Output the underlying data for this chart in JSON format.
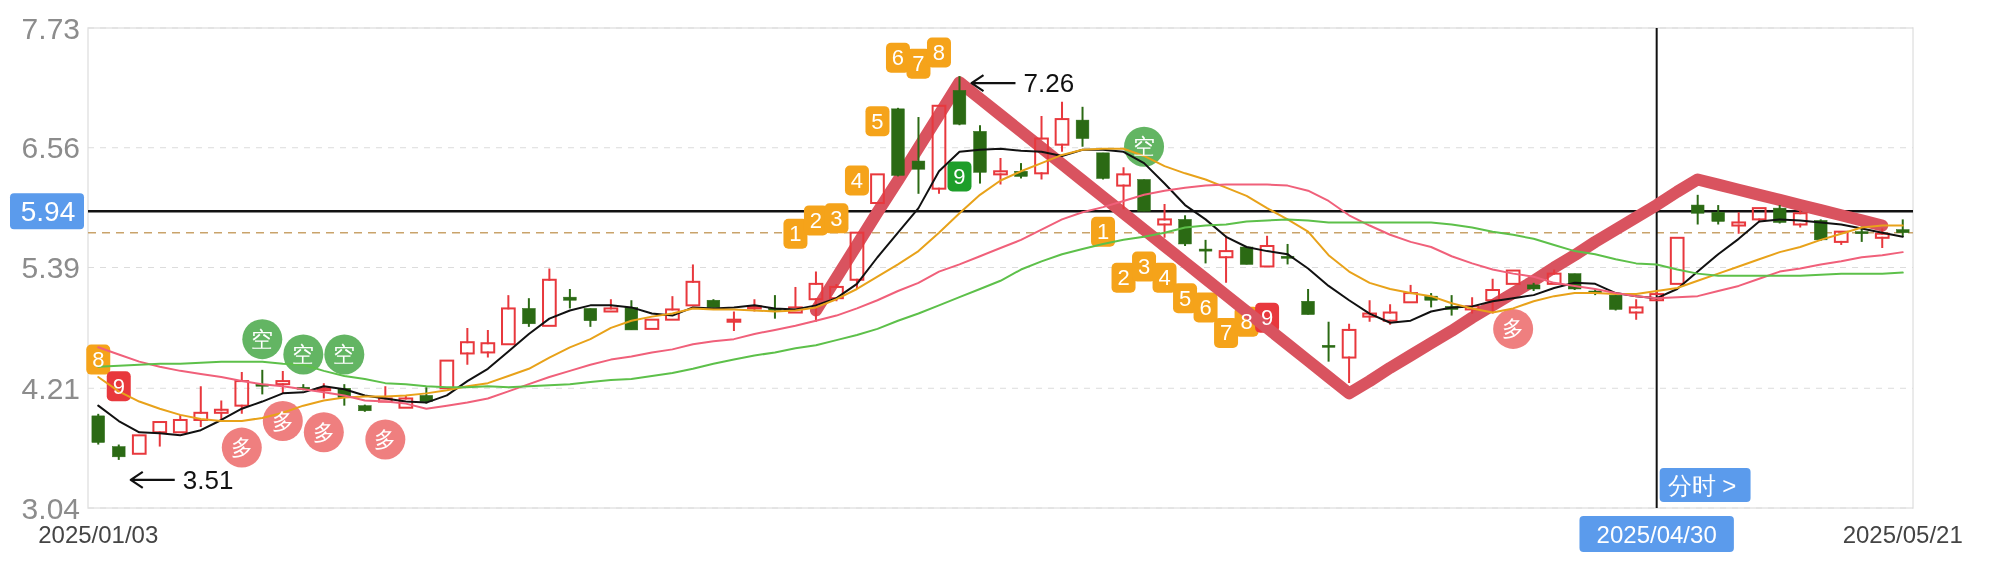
{
  "chart_data": {
    "type": "candlestick",
    "categories": [
      "2025/01/03",
      null,
      null,
      null,
      null,
      null,
      null,
      null,
      null,
      null,
      null,
      null,
      null,
      null,
      null,
      null,
      null,
      null,
      null,
      null,
      null,
      null,
      null,
      null,
      null,
      null,
      null,
      null,
      null,
      null,
      null,
      null,
      null,
      null,
      null,
      null,
      null,
      null,
      null,
      null,
      null,
      null,
      null,
      null,
      null,
      null,
      null,
      null,
      null,
      null,
      null,
      null,
      null,
      null,
      null,
      null,
      null,
      null,
      null,
      null,
      null,
      null,
      null,
      null,
      null,
      null,
      null,
      null,
      null,
      null,
      null,
      null,
      null,
      null,
      null,
      null,
      "2025/04/30",
      null,
      null,
      null,
      null,
      null,
      null,
      null,
      null,
      null,
      null,
      null,
      "2025/05/21"
    ],
    "ylim": [
      3.04,
      7.73
    ],
    "yticks": [
      3.04,
      4.21,
      5.39,
      6.56,
      7.73
    ],
    "grid": "y",
    "ohlc": [
      [
        3.94,
        3.96,
        3.66,
        3.68
      ],
      [
        3.64,
        3.66,
        3.51,
        3.54
      ],
      [
        3.57,
        3.75,
        3.57,
        3.75
      ],
      [
        3.78,
        3.88,
        3.65,
        3.88
      ],
      [
        3.78,
        3.94,
        3.78,
        3.9
      ],
      [
        3.9,
        4.22,
        3.84,
        3.97
      ],
      [
        3.97,
        4.08,
        3.9,
        4.0
      ],
      [
        4.04,
        4.36,
        3.97,
        4.28
      ],
      [
        4.25,
        4.39,
        4.15,
        4.23
      ],
      [
        4.25,
        4.37,
        4.17,
        4.28
      ],
      [
        4.22,
        4.25,
        4.19,
        4.21
      ],
      [
        4.19,
        4.25,
        4.12,
        4.21
      ],
      [
        4.21,
        4.25,
        4.04,
        4.12
      ],
      [
        4.04,
        4.05,
        3.98,
        3.99
      ],
      [
        4.08,
        4.22,
        4.08,
        4.11
      ],
      [
        4.02,
        4.13,
        4.01,
        4.11
      ],
      [
        4.14,
        4.22,
        4.06,
        4.08
      ],
      [
        4.21,
        4.48,
        4.21,
        4.48
      ],
      [
        4.55,
        4.79,
        4.45,
        4.66
      ],
      [
        4.56,
        4.77,
        4.52,
        4.65
      ],
      [
        4.64,
        5.11,
        4.64,
        4.99
      ],
      [
        4.99,
        5.09,
        4.81,
        4.84
      ],
      [
        4.82,
        5.37,
        4.81,
        5.27
      ],
      [
        5.1,
        5.18,
        4.99,
        5.07
      ],
      [
        4.99,
        4.99,
        4.81,
        4.87
      ],
      [
        4.96,
        5.07,
        4.95,
        4.99
      ],
      [
        5.0,
        5.07,
        4.78,
        4.78
      ],
      [
        4.79,
        4.88,
        4.78,
        4.88
      ],
      [
        4.88,
        5.1,
        4.87,
        4.98
      ],
      [
        5.02,
        5.41,
        5.02,
        5.25
      ],
      [
        5.07,
        5.08,
        5.0,
        5.0
      ],
      [
        4.86,
        4.95,
        4.78,
        4.88
      ],
      [
        4.99,
        5.07,
        4.97,
        5.01
      ],
      [
        4.99,
        5.12,
        4.89,
        4.98
      ],
      [
        4.95,
        5.19,
        4.94,
        5.0
      ],
      [
        5.08,
        5.34,
        4.87,
        5.23
      ],
      [
        5.09,
        5.22,
        5.07,
        5.2
      ],
      [
        5.27,
        5.74,
        5.19,
        5.73
      ],
      [
        6.02,
        6.31,
        6.02,
        6.3
      ],
      [
        6.94,
        6.95,
        6.28,
        6.29
      ],
      [
        6.43,
        6.86,
        6.11,
        6.35
      ],
      [
        6.16,
        6.98,
        6.12,
        6.97
      ],
      [
        7.12,
        7.26,
        6.78,
        6.79
      ],
      [
        6.72,
        6.78,
        6.21,
        6.32
      ],
      [
        6.3,
        6.45,
        6.21,
        6.33
      ],
      [
        6.33,
        6.41,
        6.26,
        6.28
      ],
      [
        6.31,
        6.86,
        6.26,
        6.65
      ],
      [
        6.59,
        7.0,
        6.53,
        6.84
      ],
      [
        6.83,
        6.96,
        6.57,
        6.65
      ],
      [
        6.51,
        6.51,
        6.25,
        6.26
      ],
      [
        6.19,
        6.36,
        5.97,
        6.3
      ],
      [
        6.25,
        6.25,
        5.94,
        5.94
      ],
      [
        5.81,
        6.0,
        5.69,
        5.86
      ],
      [
        5.86,
        5.9,
        5.6,
        5.62
      ],
      [
        5.57,
        5.66,
        5.43,
        5.55
      ],
      [
        5.49,
        5.69,
        5.25,
        5.55
      ],
      [
        5.59,
        5.59,
        5.42,
        5.42
      ],
      [
        5.4,
        5.69,
        5.4,
        5.6
      ],
      [
        5.5,
        5.62,
        5.42,
        5.48
      ],
      [
        5.06,
        5.18,
        4.93,
        4.93
      ],
      [
        4.63,
        4.86,
        4.47,
        4.61
      ],
      [
        4.51,
        4.83,
        4.27,
        4.78
      ],
      [
        4.91,
        5.06,
        4.87,
        4.94
      ],
      [
        4.87,
        5.02,
        4.84,
        4.95
      ],
      [
        5.05,
        5.21,
        5.05,
        5.14
      ],
      [
        5.11,
        5.14,
        5.0,
        5.07
      ],
      [
        5.01,
        5.12,
        4.92,
        4.98
      ],
      [
        4.98,
        5.09,
        4.95,
        5.01
      ],
      [
        5.07,
        5.27,
        4.95,
        5.17
      ],
      [
        5.23,
        5.37,
        5.22,
        5.36
      ],
      [
        5.22,
        5.24,
        5.16,
        5.18
      ],
      [
        5.23,
        5.36,
        5.22,
        5.33
      ],
      [
        5.33,
        5.33,
        5.17,
        5.18
      ],
      [
        5.16,
        5.18,
        5.12,
        5.14
      ],
      [
        5.12,
        5.12,
        4.97,
        4.98
      ],
      [
        4.95,
        5.07,
        4.89,
        5.0
      ],
      [
        5.07,
        5.16,
        5.06,
        5.13
      ],
      [
        5.23,
        5.69,
        5.22,
        5.68
      ],
      [
        6.0,
        6.1,
        5.81,
        5.92
      ],
      [
        5.93,
        6.0,
        5.81,
        5.84
      ],
      [
        5.8,
        5.92,
        5.73,
        5.83
      ],
      [
        5.86,
        5.98,
        5.84,
        5.97
      ],
      [
        5.97,
        6.0,
        5.82,
        5.83
      ],
      [
        5.81,
        5.94,
        5.79,
        5.92
      ],
      [
        5.85,
        5.86,
        5.65,
        5.66
      ],
      [
        5.64,
        5.75,
        5.62,
        5.74
      ],
      [
        5.74,
        5.79,
        5.64,
        5.72
      ],
      [
        5.68,
        5.76,
        5.59,
        5.72
      ],
      [
        5.76,
        5.86,
        5.69,
        5.73
      ]
    ],
    "colors": [
      "#2b6a14",
      "#2b6a14",
      "#e8383d",
      "#e8383d",
      "#e8383d",
      "#e8383d",
      "#e8383d",
      "#e8383d",
      "#2b6a14",
      "#e8383d",
      "#2b6a14",
      "#e8383d",
      "#2b6a14",
      "#2b6a14",
      "#e8383d",
      "#e8383d",
      "#2b6a14",
      "#e8383d",
      "#e8383d",
      "#e8383d",
      "#e8383d",
      "#2b6a14",
      "#e8383d",
      "#2b6a14",
      "#2b6a14",
      "#e8383d",
      "#2b6a14",
      "#e8383d",
      "#e8383d",
      "#e8383d",
      "#2b6a14",
      "#e8383d",
      "#e8383d",
      "#2b6a14",
      "#e8383d",
      "#e8383d",
      "#e8383d",
      "#e8383d",
      "#e8383d",
      "#2b6a14",
      "#2b6a14",
      "#e8383d",
      "#2b6a14",
      "#2b6a14",
      "#e8383d",
      "#2b6a14",
      "#e8383d",
      "#e8383d",
      "#2b6a14",
      "#2b6a14",
      "#e8383d",
      "#2b6a14",
      "#e8383d",
      "#2b6a14",
      "#2b6a14",
      "#e8383d",
      "#2b6a14",
      "#e8383d",
      "#2b6a14",
      "#2b6a14",
      "#2b6a14",
      "#e8383d",
      "#e8383d",
      "#e8383d",
      "#e8383d",
      "#2b6a14",
      "#2b6a14",
      "#e8383d",
      "#e8383d",
      "#e8383d",
      "#2b6a14",
      "#e8383d",
      "#2b6a14",
      "#2b6a14",
      "#2b6a14",
      "#e8383d",
      "#e8383d",
      "#e8383d",
      "#2b6a14",
      "#2b6a14",
      "#e8383d",
      "#e8383d",
      "#2b6a14",
      "#e8383d",
      "#2b6a14",
      "#e8383d",
      "#2b6a14",
      "#e8383d",
      "#2b6a14"
    ],
    "series": [
      {
        "type": "line",
        "color": "#111111",
        "values": [
          4.04,
          3.89,
          3.78,
          3.77,
          3.75,
          3.8,
          3.9,
          4.01,
          4.08,
          4.16,
          4.17,
          4.23,
          4.2,
          4.14,
          4.11,
          4.08,
          4.07,
          4.14,
          4.28,
          4.4,
          4.57,
          4.74,
          4.89,
          4.97,
          5.02,
          5.02,
          5.0,
          4.94,
          4.92,
          5.0,
          4.99,
          5.0,
          5.02,
          4.99,
          4.98,
          5.02,
          5.09,
          5.23,
          5.49,
          5.73,
          5.97,
          6.33,
          6.52,
          6.54,
          6.55,
          6.53,
          6.52,
          6.48,
          6.54,
          6.54,
          6.52,
          6.41,
          6.21,
          6.0,
          5.86,
          5.69,
          5.59,
          5.55,
          5.52,
          5.38,
          5.21,
          5.07,
          4.94,
          4.85,
          4.87,
          4.96,
          5.0,
          5.01,
          5.06,
          5.09,
          5.12,
          5.19,
          5.24,
          5.23,
          5.14,
          5.11,
          5.09,
          5.18,
          5.35,
          5.52,
          5.67,
          5.84,
          5.86,
          5.85,
          5.83,
          5.81,
          5.77,
          5.73,
          5.69
        ]
      },
      {
        "type": "line",
        "color": "#e8a21a",
        "values": [
          4.32,
          4.18,
          4.08,
          4.01,
          3.95,
          3.91,
          3.89,
          3.89,
          3.92,
          3.97,
          4.04,
          4.09,
          4.12,
          4.13,
          4.13,
          4.14,
          4.16,
          4.19,
          4.23,
          4.26,
          4.33,
          4.4,
          4.51,
          4.61,
          4.69,
          4.8,
          4.87,
          4.91,
          4.94,
          4.99,
          4.98,
          4.98,
          4.97,
          4.96,
          4.97,
          5.0,
          5.08,
          5.18,
          5.3,
          5.42,
          5.55,
          5.73,
          5.92,
          6.1,
          6.24,
          6.33,
          6.41,
          6.49,
          6.54,
          6.55,
          6.55,
          6.48,
          6.38,
          6.31,
          6.25,
          6.17,
          6.09,
          5.97,
          5.86,
          5.74,
          5.51,
          5.35,
          5.24,
          5.18,
          5.14,
          5.11,
          5.04,
          4.99,
          4.95,
          4.99,
          5.06,
          5.11,
          5.14,
          5.14,
          5.13,
          5.13,
          5.16,
          5.19,
          5.26,
          5.33,
          5.4,
          5.47,
          5.54,
          5.59,
          5.66,
          5.72,
          5.78,
          5.8,
          5.8
        ]
      },
      {
        "type": "line",
        "color": "#f0607a",
        "values": [
          4.61,
          4.54,
          4.47,
          4.42,
          4.38,
          4.35,
          4.32,
          4.28,
          4.25,
          4.23,
          4.2,
          4.17,
          4.14,
          4.09,
          4.08,
          4.06,
          4.01,
          4.04,
          4.07,
          4.11,
          4.18,
          4.25,
          4.32,
          4.38,
          4.44,
          4.49,
          4.52,
          4.56,
          4.59,
          4.64,
          4.67,
          4.69,
          4.74,
          4.78,
          4.82,
          4.87,
          4.92,
          4.99,
          5.07,
          5.16,
          5.24,
          5.35,
          5.42,
          5.5,
          5.58,
          5.66,
          5.76,
          5.86,
          5.93,
          5.98,
          6.04,
          6.1,
          6.14,
          6.17,
          6.19,
          6.2,
          6.2,
          6.2,
          6.19,
          6.14,
          6.04,
          5.9,
          5.8,
          5.71,
          5.64,
          5.59,
          5.5,
          5.43,
          5.37,
          5.33,
          5.3,
          5.24,
          5.21,
          5.18,
          5.14,
          5.11,
          5.09,
          5.1,
          5.11,
          5.16,
          5.21,
          5.28,
          5.35,
          5.38,
          5.42,
          5.45,
          5.49,
          5.51,
          5.54
        ]
      },
      {
        "type": "line",
        "color": "#5dc04a",
        "values": [
          4.42,
          4.43,
          4.44,
          4.45,
          4.45,
          4.46,
          4.47,
          4.47,
          4.47,
          4.45,
          4.44,
          4.38,
          4.33,
          4.3,
          4.26,
          4.25,
          4.23,
          4.22,
          4.22,
          4.23,
          4.22,
          4.23,
          4.24,
          4.25,
          4.27,
          4.29,
          4.3,
          4.33,
          4.36,
          4.4,
          4.45,
          4.49,
          4.53,
          4.56,
          4.6,
          4.63,
          4.68,
          4.73,
          4.79,
          4.87,
          4.94,
          5.02,
          5.1,
          5.18,
          5.26,
          5.37,
          5.45,
          5.52,
          5.57,
          5.62,
          5.66,
          5.69,
          5.73,
          5.78,
          5.8,
          5.81,
          5.84,
          5.85,
          5.86,
          5.85,
          5.83,
          5.83,
          5.83,
          5.83,
          5.83,
          5.83,
          5.81,
          5.78,
          5.74,
          5.71,
          5.67,
          5.61,
          5.55,
          5.52,
          5.47,
          5.43,
          5.42,
          5.37,
          5.33,
          5.31,
          5.31,
          5.31,
          5.31,
          5.31,
          5.32,
          5.33,
          5.33,
          5.33,
          5.34
        ]
      },
      {
        "type": "line",
        "color": "#d9535f",
        "values": [
          null,
          null,
          null,
          null,
          null,
          null,
          null,
          null,
          null,
          null,
          null,
          null,
          null,
          null,
          null,
          null,
          null,
          null,
          null,
          null,
          null,
          null,
          null,
          null,
          null,
          null,
          null,
          null,
          null,
          null,
          null,
          null,
          null,
          null,
          null,
          4.97,
          5.29,
          5.61,
          5.93,
          6.24,
          6.56,
          6.88,
          7.2,
          7.04,
          6.88,
          6.72,
          6.56,
          6.4,
          6.24,
          6.08,
          5.92,
          5.76,
          5.6,
          5.44,
          5.28,
          5.12,
          4.96,
          4.8,
          4.64,
          4.48,
          4.32,
          4.16,
          4.28,
          4.41,
          4.53,
          4.65,
          4.77,
          4.9,
          5.02,
          5.14,
          5.26,
          5.39,
          5.51,
          5.64,
          5.76,
          5.88,
          6.0,
          6.13,
          6.25,
          6.2,
          6.15,
          6.1,
          6.05,
          6.0,
          5.95,
          5.9,
          5.85,
          5.8,
          null
        ]
      },
      {
        "type": "scatter",
        "name": "空",
        "color": "#63b563",
        "marker": "circle",
        "values": [
          null,
          null,
          null,
          null,
          null,
          null,
          null,
          null,
          4.69,
          null,
          4.54,
          null,
          4.54,
          null,
          null,
          null,
          null,
          null,
          null,
          null,
          null,
          null,
          null,
          null,
          null,
          null,
          null,
          null,
          null,
          null,
          null,
          null,
          null,
          null,
          null,
          null,
          null,
          null,
          null,
          null,
          null,
          null,
          null,
          null,
          null,
          null,
          null,
          null,
          null,
          null,
          null,
          6.57,
          null,
          null,
          null,
          null,
          null,
          null,
          null,
          null,
          null,
          null,
          null,
          null,
          null,
          null,
          null,
          null,
          null,
          null,
          null,
          null,
          null,
          null,
          null,
          null,
          null,
          null,
          null,
          null,
          null,
          null,
          null,
          null,
          null,
          null,
          null,
          null,
          null
        ]
      },
      {
        "type": "scatter",
        "name": "多",
        "color": "#ef7f7f",
        "marker": "circle",
        "values": [
          null,
          null,
          null,
          null,
          null,
          null,
          null,
          3.63,
          null,
          3.89,
          null,
          3.78,
          null,
          null,
          3.71,
          null,
          null,
          null,
          null,
          null,
          null,
          null,
          null,
          null,
          null,
          null,
          null,
          null,
          null,
          null,
          null,
          null,
          null,
          null,
          null,
          null,
          null,
          null,
          null,
          null,
          null,
          null,
          null,
          null,
          null,
          null,
          null,
          null,
          null,
          null,
          null,
          null,
          null,
          null,
          null,
          null,
          null,
          null,
          null,
          null,
          null,
          null,
          null,
          null,
          null,
          null,
          null,
          null,
          null,
          4.79,
          null,
          null,
          null,
          null,
          null,
          null,
          null,
          null,
          null,
          null,
          null,
          null,
          null,
          null,
          null,
          null,
          null,
          null,
          null
        ]
      },
      {
        "type": "scatter",
        "name": "1",
        "color": "#f5a31a",
        "marker": "square",
        "values": [
          null,
          null,
          null,
          null,
          null,
          null,
          null,
          null,
          null,
          null,
          null,
          null,
          null,
          null,
          null,
          null,
          null,
          null,
          null,
          null,
          null,
          null,
          null,
          null,
          null,
          null,
          null,
          null,
          null,
          null,
          null,
          null,
          null,
          null,
          5.72,
          null,
          null,
          null,
          null,
          null,
          null,
          null,
          null,
          null,
          null,
          null,
          null,
          null,
          null,
          5.74,
          null,
          null,
          null,
          null,
          null,
          null,
          null,
          null,
          null,
          null,
          null,
          null,
          null,
          null,
          null,
          null,
          null,
          null,
          null,
          null,
          null,
          null,
          null,
          null,
          null,
          null,
          null,
          null,
          null,
          null,
          null,
          null,
          null,
          null,
          null,
          null,
          null,
          null,
          null
        ]
      },
      {
        "type": "scatter",
        "name": "2",
        "color": "#f5a31a",
        "marker": "square",
        "values": [
          null,
          null,
          null,
          null,
          null,
          null,
          null,
          null,
          null,
          null,
          null,
          null,
          null,
          null,
          null,
          null,
          null,
          null,
          null,
          null,
          null,
          null,
          null,
          null,
          null,
          null,
          null,
          null,
          null,
          null,
          null,
          null,
          null,
          null,
          null,
          5.85,
          null,
          null,
          null,
          null,
          null,
          null,
          null,
          null,
          null,
          null,
          null,
          null,
          null,
          null,
          5.29,
          null,
          null,
          null,
          null,
          null,
          null,
          null,
          null,
          null,
          null,
          null,
          null,
          null,
          null,
          null,
          null,
          null,
          null,
          null,
          null,
          null,
          null,
          null,
          null,
          null,
          null,
          null,
          null,
          null,
          null,
          null,
          null,
          null,
          null,
          null,
          null,
          null,
          null
        ]
      },
      {
        "type": "scatter",
        "name": "3",
        "color": "#f5a31a",
        "marker": "square",
        "values": [
          null,
          null,
          null,
          null,
          null,
          null,
          null,
          null,
          null,
          null,
          null,
          null,
          null,
          null,
          null,
          null,
          null,
          null,
          null,
          null,
          null,
          null,
          null,
          null,
          null,
          null,
          null,
          null,
          null,
          null,
          null,
          null,
          null,
          null,
          null,
          null,
          5.87,
          null,
          null,
          null,
          null,
          null,
          null,
          null,
          null,
          null,
          null,
          null,
          null,
          null,
          null,
          5.4,
          null,
          null,
          null,
          null,
          null,
          null,
          null,
          null,
          null,
          null,
          null,
          null,
          null,
          null,
          null,
          null,
          null,
          null,
          null,
          null,
          null,
          null,
          null,
          null,
          null,
          null,
          null,
          null,
          null,
          null,
          null,
          null,
          null,
          null,
          null,
          null,
          null
        ]
      },
      {
        "type": "scatter",
        "name": "4",
        "color": "#f5a31a",
        "marker": "square",
        "values": [
          null,
          null,
          null,
          null,
          null,
          null,
          null,
          null,
          null,
          null,
          null,
          null,
          null,
          null,
          null,
          null,
          null,
          null,
          null,
          null,
          null,
          null,
          null,
          null,
          null,
          null,
          null,
          null,
          null,
          null,
          null,
          null,
          null,
          null,
          null,
          null,
          null,
          6.24,
          null,
          null,
          null,
          null,
          null,
          null,
          null,
          null,
          null,
          null,
          null,
          null,
          null,
          null,
          5.29,
          null,
          null,
          null,
          null,
          null,
          null,
          null,
          null,
          null,
          null,
          null,
          null,
          null,
          null,
          null,
          null,
          null,
          null,
          null,
          null,
          null,
          null,
          null,
          null,
          null,
          null,
          null,
          null,
          null,
          null,
          null,
          null,
          null,
          null,
          null,
          null
        ]
      },
      {
        "type": "scatter",
        "name": "5",
        "color": "#f5a31a",
        "marker": "square",
        "values": [
          null,
          null,
          null,
          null,
          null,
          null,
          null,
          null,
          null,
          null,
          null,
          null,
          null,
          null,
          null,
          null,
          null,
          null,
          null,
          null,
          null,
          null,
          null,
          null,
          null,
          null,
          null,
          null,
          null,
          null,
          null,
          null,
          null,
          null,
          null,
          null,
          null,
          null,
          6.82,
          null,
          null,
          null,
          null,
          null,
          null,
          null,
          null,
          null,
          null,
          null,
          null,
          null,
          null,
          5.09,
          null,
          null,
          null,
          null,
          null,
          null,
          null,
          null,
          null,
          null,
          null,
          null,
          null,
          null,
          null,
          null,
          null,
          null,
          null,
          null,
          null,
          null,
          null,
          null,
          null,
          null,
          null,
          null,
          null,
          null,
          null,
          null,
          null,
          null,
          null
        ]
      },
      {
        "type": "scatter",
        "name": "6",
        "color": "#f5a31a",
        "marker": "square",
        "values": [
          null,
          null,
          null,
          null,
          null,
          null,
          null,
          null,
          null,
          null,
          null,
          null,
          null,
          null,
          null,
          null,
          null,
          null,
          null,
          null,
          null,
          null,
          null,
          null,
          null,
          null,
          null,
          null,
          null,
          null,
          null,
          null,
          null,
          null,
          null,
          null,
          null,
          null,
          null,
          7.44,
          null,
          null,
          null,
          null,
          null,
          null,
          null,
          null,
          null,
          null,
          null,
          null,
          null,
          null,
          5.0,
          null,
          null,
          null,
          null,
          null,
          null,
          null,
          null,
          null,
          null,
          null,
          null,
          null,
          null,
          null,
          null,
          null,
          null,
          null,
          null,
          null,
          null,
          null,
          null,
          null,
          null,
          null,
          null,
          null,
          null,
          null,
          null,
          null,
          null
        ]
      },
      {
        "type": "scatter",
        "name": "7",
        "color": "#f5a31a",
        "marker": "square",
        "values": [
          null,
          null,
          null,
          null,
          null,
          null,
          null,
          null,
          null,
          null,
          null,
          null,
          null,
          null,
          null,
          null,
          null,
          null,
          null,
          null,
          null,
          null,
          null,
          null,
          null,
          null,
          null,
          null,
          null,
          null,
          null,
          null,
          null,
          null,
          null,
          null,
          null,
          null,
          null,
          null,
          7.38,
          null,
          null,
          null,
          null,
          null,
          null,
          null,
          null,
          null,
          null,
          null,
          null,
          null,
          null,
          4.75,
          null,
          null,
          null,
          null,
          null,
          null,
          null,
          null,
          null,
          null,
          null,
          null,
          null,
          null,
          null,
          null,
          null,
          null,
          null,
          null,
          null,
          null,
          null,
          null,
          null,
          null,
          null,
          null,
          null,
          null,
          null,
          null,
          null
        ]
      },
      {
        "type": "scatter",
        "name": "8",
        "color": "#f5a31a",
        "marker": "square",
        "values": [
          4.49,
          null,
          null,
          null,
          null,
          null,
          null,
          null,
          null,
          null,
          null,
          null,
          null,
          null,
          null,
          null,
          null,
          null,
          null,
          null,
          null,
          null,
          null,
          null,
          null,
          null,
          null,
          null,
          null,
          null,
          null,
          null,
          null,
          null,
          null,
          null,
          null,
          null,
          null,
          null,
          null,
          7.49,
          null,
          null,
          null,
          null,
          null,
          null,
          null,
          null,
          null,
          null,
          null,
          null,
          null,
          null,
          4.86,
          null,
          null,
          null,
          null,
          null,
          null,
          null,
          null,
          null,
          null,
          null,
          null,
          null,
          null,
          null,
          null,
          null,
          null,
          null,
          null,
          null,
          null,
          null,
          null,
          null,
          null,
          null,
          null,
          null,
          null,
          null,
          null
        ]
      },
      {
        "type": "scatter",
        "name": "9",
        "color": "#e8383d",
        "marker": "square",
        "values": [
          null,
          4.23,
          null,
          null,
          null,
          null,
          null,
          null,
          null,
          null,
          null,
          null,
          null,
          null,
          null,
          null,
          null,
          null,
          null,
          null,
          null,
          null,
          null,
          null,
          null,
          null,
          null,
          null,
          null,
          null,
          null,
          null,
          null,
          null,
          null,
          null,
          null,
          null,
          null,
          null,
          null,
          null,
          null,
          null,
          null,
          null,
          null,
          null,
          null,
          null,
          null,
          null,
          null,
          null,
          null,
          null,
          null,
          4.9,
          null,
          null,
          null,
          null,
          null,
          null,
          null,
          null,
          null,
          null,
          null,
          null,
          null,
          null,
          null,
          null,
          null,
          null,
          null,
          null,
          null,
          null,
          null,
          null,
          null,
          null,
          null,
          null,
          null,
          null,
          null
        ]
      },
      {
        "type": "scatter",
        "name": "9",
        "color": "#1e9e2a",
        "marker": "square",
        "values": [
          null,
          null,
          null,
          null,
          null,
          null,
          null,
          null,
          null,
          null,
          null,
          null,
          null,
          null,
          null,
          null,
          null,
          null,
          null,
          null,
          null,
          null,
          null,
          null,
          null,
          null,
          null,
          null,
          null,
          null,
          null,
          null,
          null,
          null,
          null,
          null,
          null,
          null,
          null,
          null,
          null,
          null,
          6.28,
          null,
          null,
          null,
          null,
          null,
          null,
          null,
          null,
          null,
          null,
          null,
          null,
          null,
          null,
          null,
          null,
          null,
          null,
          null,
          null,
          null,
          null,
          null,
          null,
          null,
          null,
          null,
          null,
          null,
          null,
          null,
          null,
          null,
          null,
          null,
          null,
          null,
          null,
          null,
          null,
          null,
          null,
          null,
          null,
          null,
          null
        ]
      }
    ],
    "ref_lines": [
      {
        "axis": "y",
        "value": 5.73,
        "color": "#c9a36b",
        "line_style": "dashed"
      },
      {
        "axis": "y",
        "value": 5.94,
        "label": "5.94",
        "color": "#111111"
      },
      {
        "axis": "x",
        "value": "2025/04/30",
        "label": "分时 >",
        "color": "#111111"
      }
    ],
    "annotations": [
      "7.26",
      "3.51"
    ]
  }
}
